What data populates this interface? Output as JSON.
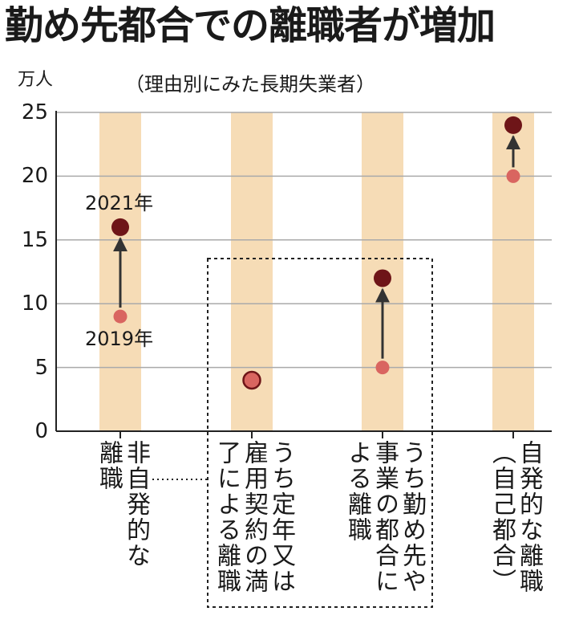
{
  "chart_data": {
    "type": "scatter",
    "title": "勤め先都合での離職者が増加",
    "subtitle": "（理由別にみた長期失業者）",
    "ylabel": "万人",
    "ylim": [
      0,
      25
    ],
    "yticks": [
      0,
      5,
      10,
      15,
      20,
      25
    ],
    "grid": true,
    "categories": [
      {
        "lines": [
          "非自発的な",
          "離職"
        ]
      },
      {
        "lines": [
          "うち定年又は",
          "雇用契約の満",
          "了による離職"
        ]
      },
      {
        "lines": [
          "うち勤め先や",
          "事業の都合に",
          "よる離職"
        ]
      },
      {
        "lines": [
          "自発的な離職",
          "（自己都合）"
        ]
      }
    ],
    "series": [
      {
        "name": "2019年",
        "values": [
          9,
          4,
          5,
          20
        ]
      },
      {
        "name": "2021年",
        "values": [
          16,
          4,
          12,
          24
        ]
      }
    ],
    "colors": {
      "band": "#f6dcb6",
      "grid": "#aaaaaa",
      "y2019": "#d96560",
      "y2021": "#6e1518",
      "arrow": "#333333"
    }
  }
}
